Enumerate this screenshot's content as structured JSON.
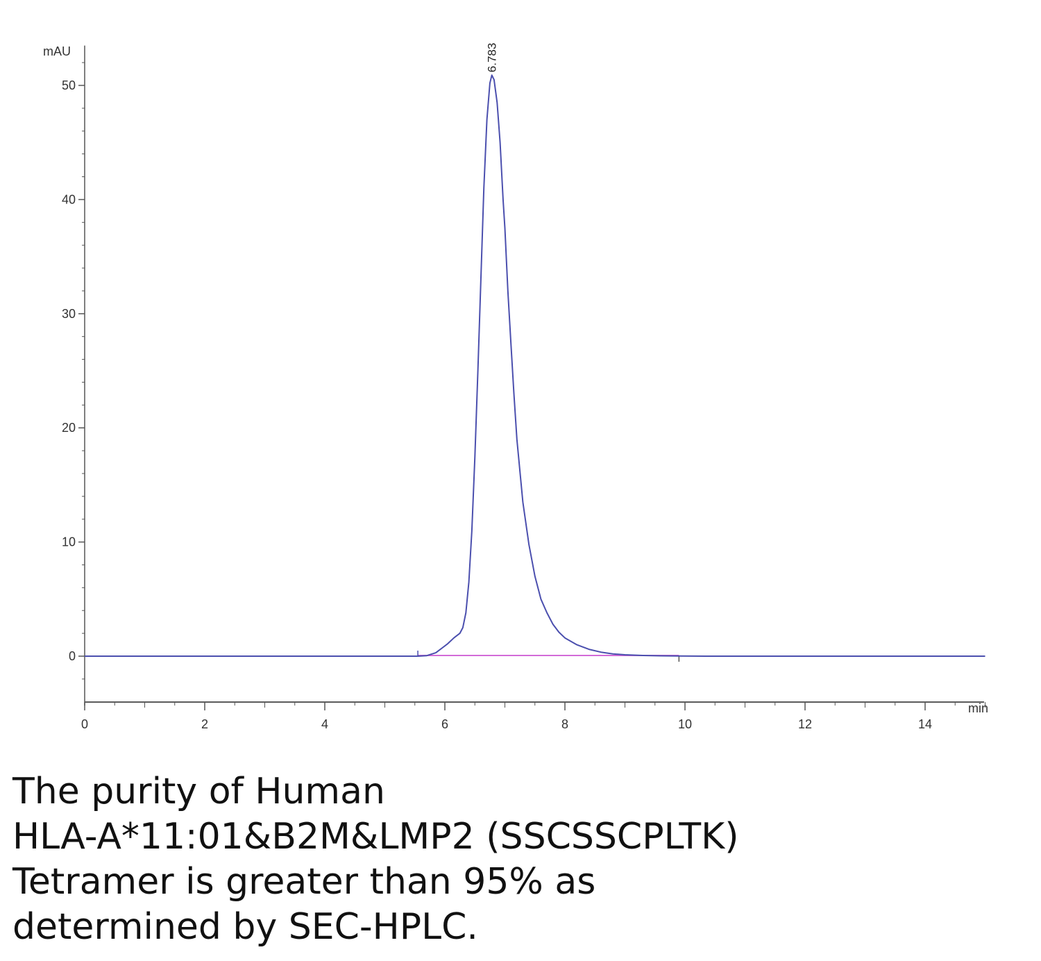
{
  "chart_data": {
    "type": "line",
    "title": "",
    "y_unit_label": "mAU",
    "x_unit_label": "min",
    "xlim": [
      0,
      15
    ],
    "ylim": [
      -2.5,
      53
    ],
    "x_ticks": [
      0,
      2,
      4,
      6,
      8,
      10,
      12,
      14
    ],
    "y_ticks": [
      0,
      10,
      20,
      30,
      40,
      50
    ],
    "grid": false,
    "peak_label": "6.783",
    "colors": {
      "trace": "#4b4fae",
      "baseline": "#d36bd8",
      "axis": "#555555"
    },
    "series": [
      {
        "x": [
          0,
          1,
          2,
          3,
          3.6,
          4.5,
          5.0,
          5.55,
          5.7,
          5.85,
          5.95,
          6.05,
          6.15,
          6.25,
          6.3,
          6.35,
          6.4,
          6.45,
          6.5,
          6.55,
          6.6,
          6.65,
          6.7,
          6.75,
          6.783,
          6.82,
          6.87,
          6.92,
          6.97,
          7.0,
          7.05,
          7.1,
          7.15,
          7.2,
          7.3,
          7.4,
          7.5,
          7.6,
          7.7,
          7.8,
          7.9,
          8.0,
          8.2,
          8.4,
          8.6,
          8.8,
          9.0,
          9.3,
          9.6,
          9.9,
          10.5,
          11,
          12,
          13,
          14,
          15
        ],
        "y": [
          0,
          0,
          0,
          0,
          0,
          0,
          0,
          0,
          0.05,
          0.3,
          0.7,
          1.1,
          1.6,
          2.0,
          2.5,
          3.8,
          6.5,
          11.0,
          17.5,
          25.0,
          33.0,
          41.0,
          47.0,
          50.2,
          50.9,
          50.5,
          48.5,
          45.0,
          40.0,
          37.5,
          32.0,
          27.5,
          23.0,
          19.0,
          13.5,
          9.8,
          7.0,
          5.0,
          3.8,
          2.8,
          2.1,
          1.6,
          1.0,
          0.6,
          0.35,
          0.2,
          0.12,
          0.06,
          0.03,
          0.01,
          0,
          0,
          0,
          0,
          0,
          0
        ]
      }
    ],
    "baseline_x": [
      5.55,
      9.9
    ]
  },
  "caption": {
    "line1": "The purity of Human",
    "line2": "HLA-A*11:01&B2M&LMP2 (SSCSSCPLTK)",
    "line3": "Tetramer is greater than 95% as",
    "line4": "determined by SEC-HPLC."
  }
}
